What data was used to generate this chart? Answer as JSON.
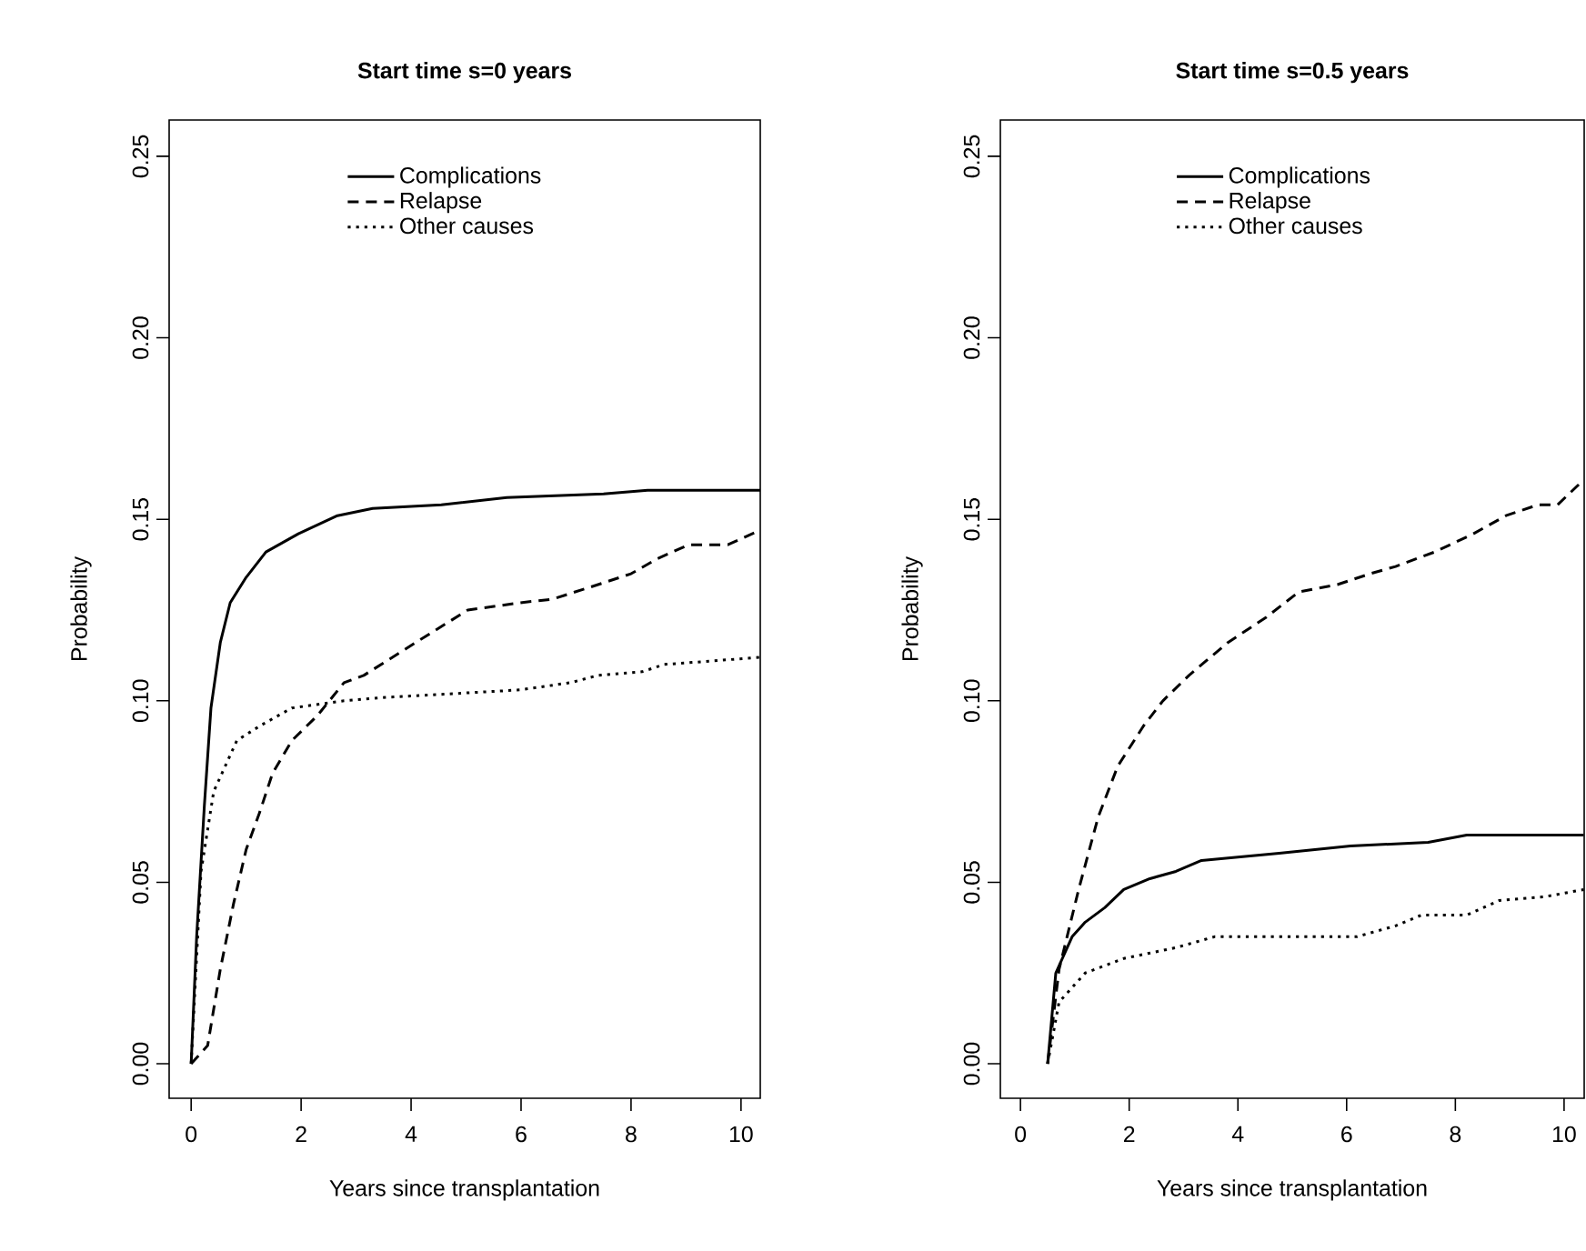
{
  "chart_data": [
    {
      "type": "line",
      "title": "Start time s=0 years",
      "xlabel": "Years since transplantation",
      "ylabel": "Probability",
      "xlim": [
        -0.4,
        10.35
      ],
      "ylim": [
        -0.0095,
        0.26
      ],
      "xticks": [
        0,
        2,
        4,
        6,
        8,
        10
      ],
      "yticks": [
        {
          "value": 0,
          "label": "0.00"
        },
        {
          "value": 0.05,
          "label": "0.05"
        },
        {
          "value": 0.1,
          "label": "0.10"
        },
        {
          "value": 0.15,
          "label": "0.15"
        },
        {
          "value": 0.2,
          "label": "0.20"
        },
        {
          "value": 0.25,
          "label": "0.25"
        }
      ],
      "legend": "top",
      "marker": "none",
      "series": [
        {
          "name": "Complications",
          "color": "#000000",
          "line_style": "solid",
          "x": [
            0,
            0.1,
            0.24,
            0.36,
            0.53,
            0.71,
            1.0,
            1.36,
            1.95,
            2.66,
            3.3,
            4.55,
            5.74,
            7.5,
            8.3,
            10.35
          ],
          "values": [
            0,
            0.035,
            0.071,
            0.098,
            0.116,
            0.127,
            0.134,
            0.141,
            0.146,
            0.151,
            0.153,
            0.154,
            0.156,
            0.157,
            0.158,
            0.158
          ]
        },
        {
          "name": "Relapse",
          "color": "#000000",
          "line_style": "dashed",
          "x": [
            0,
            0.3,
            0.53,
            0.77,
            1.0,
            1.24,
            1.48,
            1.83,
            2.3,
            2.78,
            3.14,
            4.08,
            5.03,
            5.98,
            6.57,
            7.4,
            8.0,
            8.46,
            9.05,
            9.76,
            10.35
          ],
          "values": [
            0,
            0.005,
            0.026,
            0.044,
            0.059,
            0.069,
            0.08,
            0.089,
            0.096,
            0.105,
            0.107,
            0.116,
            0.125,
            0.127,
            0.128,
            0.132,
            0.135,
            0.139,
            0.143,
            0.143,
            0.147
          ]
        },
        {
          "name": "Other causes",
          "color": "#000000",
          "line_style": "dotted",
          "x": [
            0,
            0.18,
            0.41,
            0.83,
            1.24,
            1.83,
            2.78,
            3.6,
            4.8,
            5.98,
            6.9,
            7.4,
            8.2,
            8.6,
            9.5,
            10.35
          ],
          "values": [
            0,
            0.053,
            0.075,
            0.089,
            0.093,
            0.098,
            0.1,
            0.101,
            0.102,
            0.103,
            0.105,
            0.107,
            0.108,
            0.11,
            0.111,
            0.112
          ]
        }
      ]
    },
    {
      "type": "line",
      "title": "Start time s=0.5 years",
      "xlabel": "Years since transplantation",
      "ylabel": "Probability",
      "xlim": [
        -0.37,
        10.37
      ],
      "ylim": [
        -0.0095,
        0.26
      ],
      "xticks": [
        0,
        2,
        4,
        6,
        8,
        10
      ],
      "yticks": [
        {
          "value": 0,
          "label": "0.00"
        },
        {
          "value": 0.05,
          "label": "0.05"
        },
        {
          "value": 0.1,
          "label": "0.10"
        },
        {
          "value": 0.15,
          "label": "0.15"
        },
        {
          "value": 0.2,
          "label": "0.20"
        },
        {
          "value": 0.25,
          "label": "0.25"
        }
      ],
      "legend": "top",
      "marker": "none",
      "series": [
        {
          "name": "Complications",
          "color": "#000000",
          "line_style": "solid",
          "x": [
            0.5,
            0.65,
            0.95,
            1.19,
            1.55,
            1.9,
            2.38,
            2.86,
            3.33,
            4.76,
            6.07,
            7.5,
            8.21,
            10.36
          ],
          "values": [
            0,
            0.025,
            0.035,
            0.039,
            0.043,
            0.048,
            0.051,
            0.053,
            0.056,
            0.058,
            0.06,
            0.061,
            0.063,
            0.063
          ]
        },
        {
          "name": "Relapse",
          "color": "#000000",
          "line_style": "dashed",
          "x": [
            0.5,
            0.71,
            1.07,
            1.43,
            1.79,
            2.26,
            2.62,
            3.1,
            3.81,
            4.52,
            5.12,
            5.83,
            6.43,
            6.9,
            7.62,
            8.33,
            8.93,
            9.52,
            9.88,
            10.3
          ],
          "values": [
            0,
            0.026,
            0.048,
            0.068,
            0.082,
            0.093,
            0.1,
            0.107,
            0.116,
            0.123,
            0.13,
            0.132,
            0.135,
            0.137,
            0.141,
            0.146,
            0.151,
            0.154,
            0.154,
            0.16
          ]
        },
        {
          "name": "Other causes",
          "color": "#000000",
          "line_style": "dotted",
          "x": [
            0.5,
            0.71,
            1.19,
            1.9,
            2.86,
            3.57,
            5.0,
            6.19,
            6.9,
            7.38,
            8.21,
            8.81,
            9.64,
            10.36
          ],
          "values": [
            0,
            0.017,
            0.025,
            0.029,
            0.032,
            0.035,
            0.035,
            0.035,
            0.038,
            0.041,
            0.041,
            0.045,
            0.046,
            0.048
          ]
        }
      ]
    }
  ]
}
